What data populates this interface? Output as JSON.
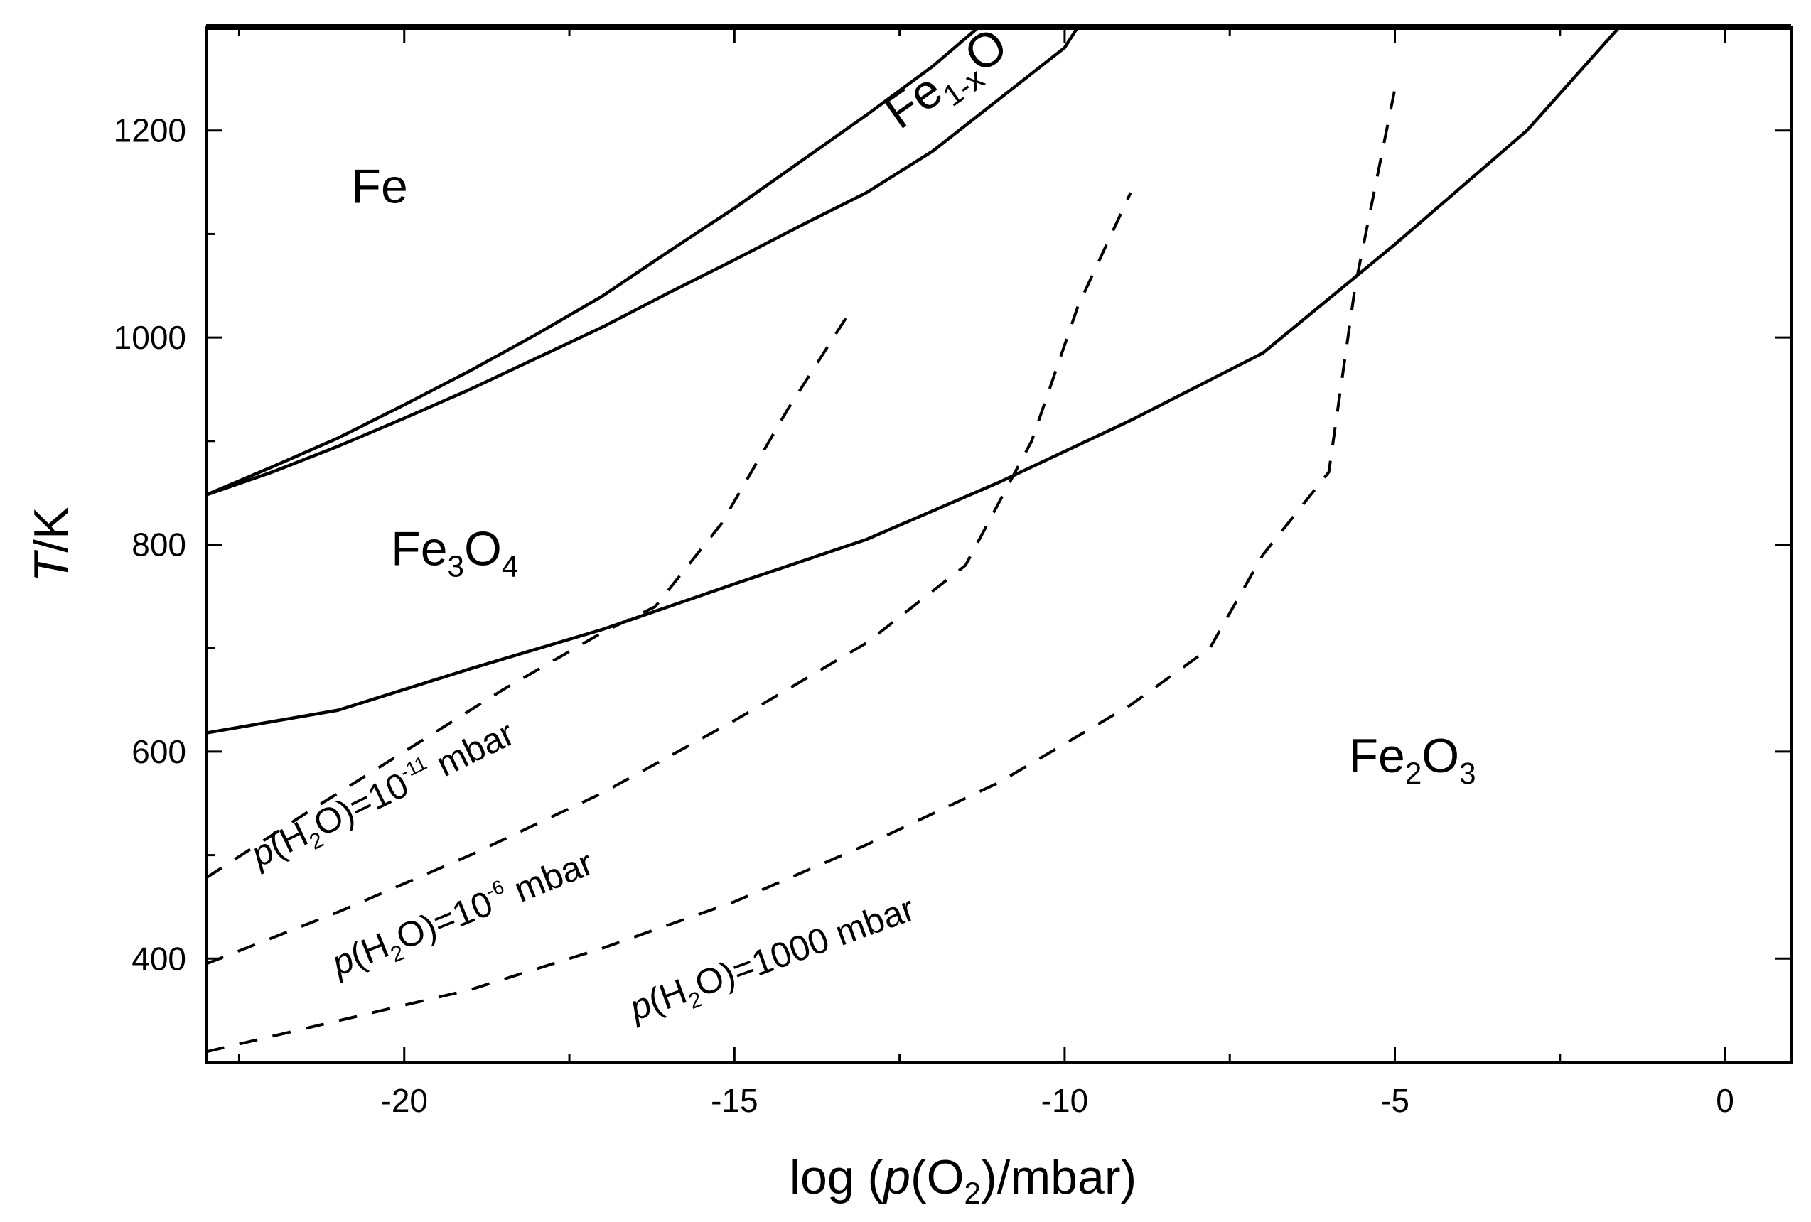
{
  "chart_data": {
    "type": "line",
    "title": "",
    "xlabel": {
      "pre": "log (",
      "p": "p",
      "mid": "(O",
      "sub": "2",
      "post": ")/mbar)"
    },
    "ylabel": {
      "t": "T",
      "rest": "/K"
    },
    "xlim": [
      -23,
      1
    ],
    "ylim": [
      300,
      1300
    ],
    "xticks": [
      -20,
      -15,
      -10,
      -5,
      0
    ],
    "xtick_labels": [
      "-20",
      "-15",
      "-10",
      "-5",
      "0"
    ],
    "yticks": [
      400,
      600,
      800,
      1000,
      1200
    ],
    "ytick_labels": [
      "400",
      "600",
      "800",
      "1000",
      "1200"
    ],
    "grid": false,
    "phase_labels": [
      {
        "name": "phase-label-fe",
        "x": -20.8,
        "y": 1130,
        "parts": [
          [
            "Fe",
            ""
          ]
        ]
      },
      {
        "name": "phase-label-fe3o4",
        "x": -20.2,
        "y": 780,
        "parts": [
          [
            "Fe",
            ""
          ],
          [
            "3",
            "sub"
          ],
          [
            "O",
            ""
          ],
          [
            "4",
            "sub"
          ]
        ]
      },
      {
        "name": "phase-label-fe2o3",
        "x": -5.7,
        "y": 580,
        "parts": [
          [
            "Fe",
            ""
          ],
          [
            "2",
            "sub"
          ],
          [
            "O",
            ""
          ],
          [
            "3",
            "sub"
          ]
        ]
      },
      {
        "name": "phase-label-fe1xo",
        "x": -12.5,
        "y": 1200,
        "rotate": -35,
        "parts": [
          [
            "Fe",
            ""
          ],
          [
            "1-x",
            "sub"
          ],
          [
            "O",
            ""
          ]
        ]
      }
    ],
    "series": [
      {
        "style": "solid",
        "x": [
          -23,
          -22,
          -21,
          -20,
          -19,
          -18,
          -17,
          -16,
          -15,
          -14,
          -13,
          -12,
          -11.3
        ],
        "y": [
          848,
          875,
          903,
          935,
          968,
          1003,
          1040,
          1083,
          1125,
          1170,
          1215,
          1262,
          1300
        ]
      },
      {
        "style": "solid",
        "x": [
          -23,
          -22,
          -21,
          -20,
          -19,
          -18,
          -17,
          -16,
          -15,
          -14,
          -13,
          -12,
          -11,
          -10,
          -9.8
        ],
        "y": [
          848,
          870,
          895,
          922,
          950,
          980,
          1010,
          1043,
          1075,
          1108,
          1140,
          1180,
          1230,
          1280,
          1300
        ]
      },
      {
        "style": "solid",
        "x": [
          -23,
          -21,
          -19,
          -17,
          -15,
          -13,
          -11,
          -9,
          -7,
          -5,
          -3,
          -1.6
        ],
        "y": [
          618,
          640,
          680,
          718,
          762,
          805,
          860,
          920,
          985,
          1090,
          1200,
          1300
        ]
      },
      {
        "style": "dashed",
        "label": "",
        "x": [
          -23,
          -21.5,
          -20,
          -18.5,
          -17,
          -16.2,
          -15.2,
          -14.2,
          -13.2
        ],
        "y": [
          478,
          540,
          600,
          660,
          715,
          740,
          820,
          930,
          1030
        ]
      },
      {
        "style": "dashed",
        "label": "",
        "x": [
          -23,
          -21,
          -19,
          -17,
          -15,
          -13,
          -11.5,
          -10.5,
          -9.8,
          -9.0
        ],
        "y": [
          395,
          445,
          500,
          560,
          630,
          705,
          780,
          900,
          1030,
          1140
        ]
      },
      {
        "style": "dashed",
        "label": "",
        "x": [
          -23,
          -21,
          -19,
          -17,
          -15,
          -13,
          -11,
          -9,
          -7.8,
          -7,
          -6,
          -5.6,
          -5.0
        ],
        "y": [
          310,
          340,
          370,
          410,
          455,
          510,
          570,
          645,
          700,
          790,
          870,
          1050,
          1240
        ]
      }
    ],
    "curve_labels": [
      {
        "name": "curve-label-h2o-1e-11",
        "x": -22.2,
        "y": 488,
        "rotate": -26,
        "value": "10",
        "exp": "-11",
        "unit": " mbar"
      },
      {
        "name": "curve-label-h2o-1e-6",
        "x": -21.0,
        "y": 383,
        "rotate": -22,
        "value": "10",
        "exp": "-6",
        "unit": " mbar"
      },
      {
        "name": "curve-label-h2o-1000",
        "x": -16.5,
        "y": 340,
        "rotate": -20,
        "value": "1000",
        "exp": "",
        "unit": " mbar"
      }
    ],
    "h2o_prefix": {
      "p": "p",
      "open": "(H",
      "sub": "2",
      "close": "O)="
    }
  }
}
